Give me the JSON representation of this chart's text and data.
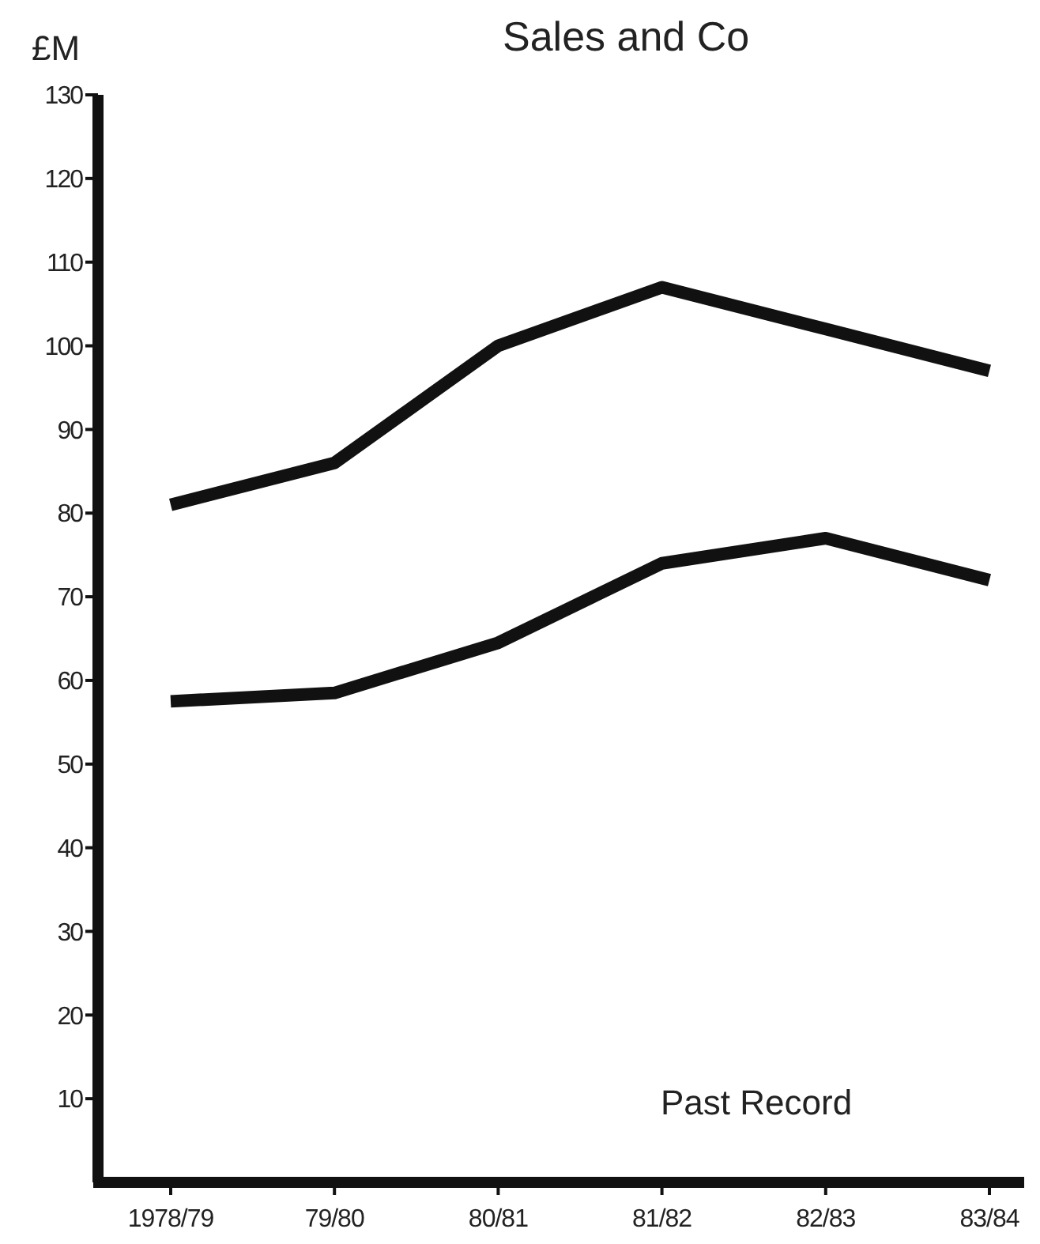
{
  "chart_data": {
    "type": "line",
    "title": "Sales and Co",
    "ylabel": "£M",
    "categories": [
      "1978/79",
      "79/80",
      "80/81",
      "81/82",
      "82/83",
      "83/84"
    ],
    "series": [
      {
        "color": "#111111",
        "values": [
          81,
          86,
          100,
          107,
          102,
          97
        ]
      },
      {
        "color": "#111111",
        "values": [
          57.5,
          58.5,
          64.5,
          74,
          77,
          72
        ]
      }
    ],
    "ylim": [
      0,
      130
    ],
    "yticks": [
      10,
      20,
      30,
      40,
      50,
      60,
      70,
      80,
      90,
      100,
      110,
      120,
      130
    ],
    "grid": false,
    "marker": "none",
    "line_style": "solid",
    "annotations": [
      "Past Record"
    ]
  }
}
